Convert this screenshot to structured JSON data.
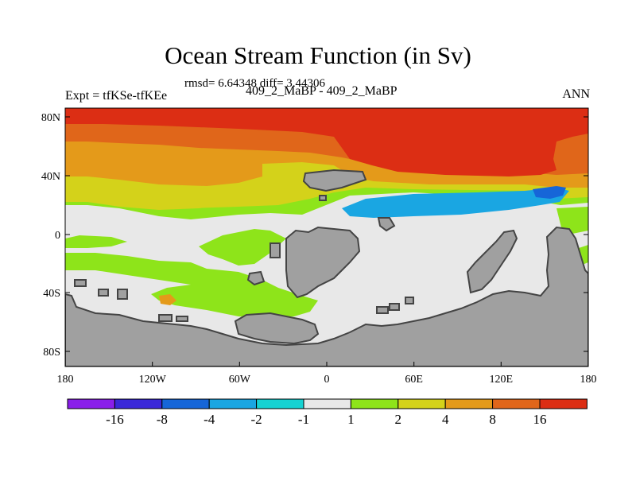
{
  "title": "Ocean Stream Function (in Sv)",
  "stats": "rmsd= 6.64348 diff= 3.44306",
  "comparison": "409_2_MaBP - 409_2_MaBP",
  "experiment": "Expt = tfKSe-tfKEe",
  "season": "ANN",
  "lat_labels": [
    "80N",
    "40N",
    "0",
    "40S",
    "80S"
  ],
  "lon_labels": [
    "180",
    "120W",
    "60W",
    "0",
    "60E",
    "120E",
    "180"
  ],
  "colorbar": {
    "colors": [
      "#8a1eea",
      "#3a28d8",
      "#1666d8",
      "#1aa6e2",
      "#16d2d2",
      "#e8e8e8",
      "#8ee41a",
      "#d4d21a",
      "#e49a1a",
      "#e0661a",
      "#dc2e14"
    ],
    "labels": [
      "-16",
      "-8",
      "-4",
      "-2",
      "-1",
      "1",
      "2",
      "4",
      "8",
      "16"
    ]
  },
  "fill_colors": {
    "red": "#dc2e14",
    "dark_orange": "#e0661a",
    "orange": "#e49a1a",
    "yellow": "#d4d21a",
    "green": "#8ee41a",
    "white": "#e8e8e8",
    "cyan": "#16d2d2",
    "light_blue": "#1aa6e2",
    "blue": "#1666d8",
    "land": "#a0a0a0",
    "land_outline": "#444444"
  }
}
